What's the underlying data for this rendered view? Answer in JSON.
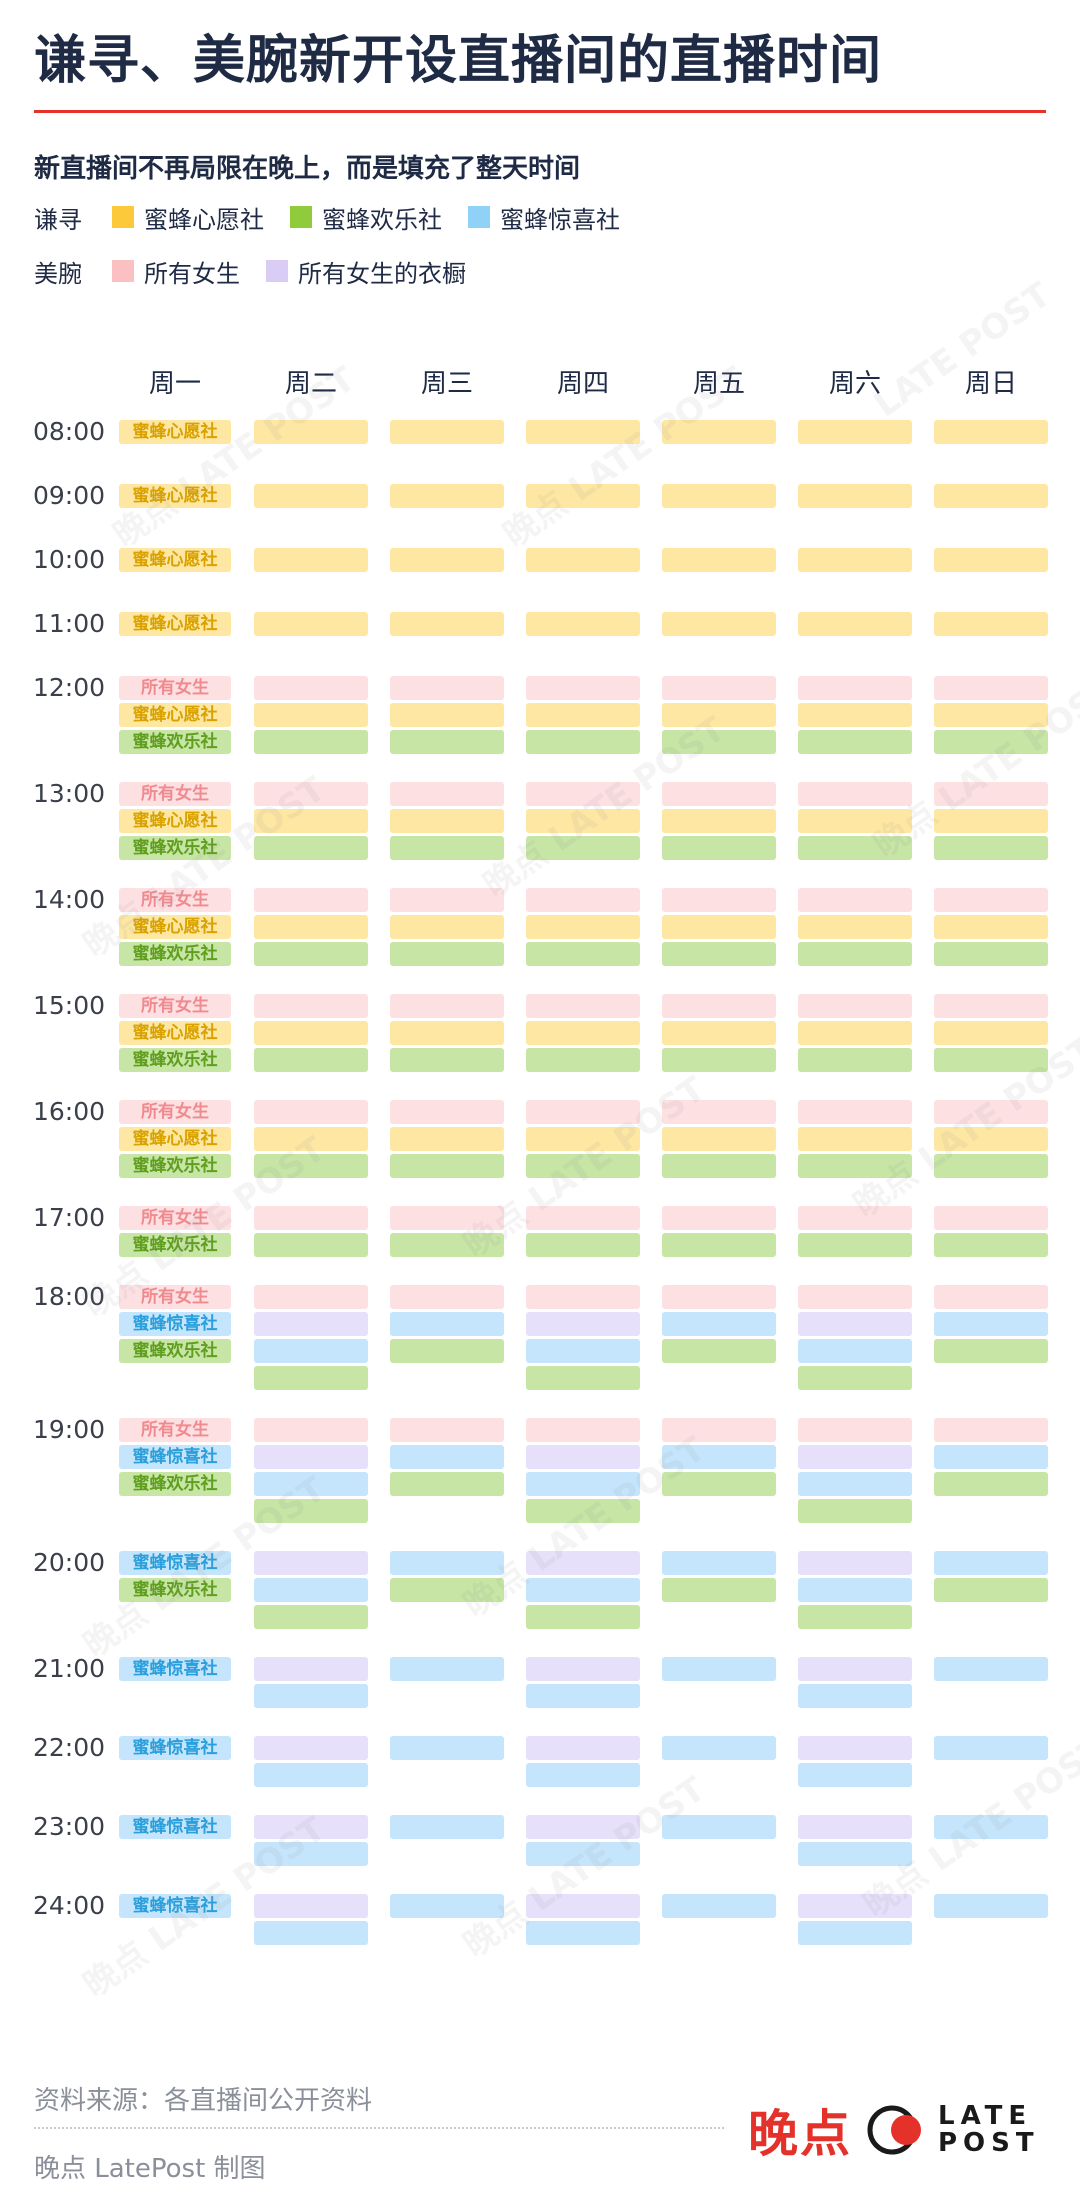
{
  "title": "谦寻、美腕新开设直播间的直播时间",
  "subtitle": "新直播间不再局限在晚上，而是填充了整天时间",
  "legend": {
    "rows": [
      {
        "host": "谦寻",
        "items": [
          {
            "label": "蜜蜂心愿社",
            "color": "#fcc93a"
          },
          {
            "label": "蜜蜂欢乐社",
            "color": "#8fcb3a"
          },
          {
            "label": "蜜蜂惊喜社",
            "color": "#8fd1f7"
          }
        ]
      },
      {
        "host": "美腕",
        "items": [
          {
            "label": "所有女生",
            "color": "#fbc0c2"
          },
          {
            "label": "所有女生的衣橱",
            "color": "#d9cdf6"
          }
        ]
      }
    ]
  },
  "colors": {
    "accent": "#e4312a",
    "text": "#1f2a44",
    "muted": "#8a8f99"
  },
  "chart_data": {
    "type": "table",
    "days": [
      "周一",
      "周二",
      "周三",
      "周四",
      "周五",
      "周六",
      "周日"
    ],
    "series_key": {
      "心愿": {
        "name": "蜜蜂心愿社",
        "fill": "#fde7a2",
        "text": "#d9a200"
      },
      "欢乐": {
        "name": "蜜蜂欢乐社",
        "fill": "#c7e5a4",
        "text": "#5f9e1e"
      },
      "惊喜": {
        "name": "蜜蜂惊喜社",
        "fill": "#c4e5fb",
        "text": "#2a9fdc"
      },
      "女生": {
        "name": "所有女生",
        "fill": "#fde0e2",
        "text": "#f08a8f"
      },
      "衣橱": {
        "name": "所有女生的衣橱",
        "fill": "#e6e0fa",
        "text": "#9a87d6"
      }
    },
    "hours": [
      {
        "time": "08:00",
        "monday": [
          "心愿"
        ],
        "grid": [
          [
            "心愿"
          ],
          [
            "心愿"
          ],
          [
            "心愿"
          ],
          [
            "心愿"
          ],
          [
            "心愿"
          ],
          [
            "心愿"
          ]
        ]
      },
      {
        "time": "09:00",
        "monday": [
          "心愿"
        ],
        "grid": [
          [
            "心愿"
          ],
          [
            "心愿"
          ],
          [
            "心愿"
          ],
          [
            "心愿"
          ],
          [
            "心愿"
          ],
          [
            "心愿"
          ]
        ]
      },
      {
        "time": "10:00",
        "monday": [
          "心愿"
        ],
        "grid": [
          [
            "心愿"
          ],
          [
            "心愿"
          ],
          [
            "心愿"
          ],
          [
            "心愿"
          ],
          [
            "心愿"
          ],
          [
            "心愿"
          ]
        ]
      },
      {
        "time": "11:00",
        "monday": [
          "心愿"
        ],
        "grid": [
          [
            "心愿"
          ],
          [
            "心愿"
          ],
          [
            "心愿"
          ],
          [
            "心愿"
          ],
          [
            "心愿"
          ],
          [
            "心愿"
          ]
        ]
      },
      {
        "time": "12:00",
        "monday": [
          "女生",
          "心愿",
          "欢乐"
        ],
        "grid": [
          [
            "女生",
            "心愿",
            "欢乐"
          ],
          [
            "女生",
            "心愿",
            "欢乐"
          ],
          [
            "女生",
            "心愿",
            "欢乐"
          ],
          [
            "女生",
            "心愿",
            "欢乐"
          ],
          [
            "女生",
            "心愿",
            "欢乐"
          ],
          [
            "女生",
            "心愿",
            "欢乐"
          ]
        ]
      },
      {
        "time": "13:00",
        "monday": [
          "女生",
          "心愿",
          "欢乐"
        ],
        "grid": [
          [
            "女生",
            "心愿",
            "欢乐"
          ],
          [
            "女生",
            "心愿",
            "欢乐"
          ],
          [
            "女生",
            "心愿",
            "欢乐"
          ],
          [
            "女生",
            "心愿",
            "欢乐"
          ],
          [
            "女生",
            "心愿",
            "欢乐"
          ],
          [
            "女生",
            "心愿",
            "欢乐"
          ]
        ]
      },
      {
        "time": "14:00",
        "monday": [
          "女生",
          "心愿",
          "欢乐"
        ],
        "grid": [
          [
            "女生",
            "心愿",
            "欢乐"
          ],
          [
            "女生",
            "心愿",
            "欢乐"
          ],
          [
            "女生",
            "心愿",
            "欢乐"
          ],
          [
            "女生",
            "心愿",
            "欢乐"
          ],
          [
            "女生",
            "心愿",
            "欢乐"
          ],
          [
            "女生",
            "心愿",
            "欢乐"
          ]
        ]
      },
      {
        "time": "15:00",
        "monday": [
          "女生",
          "心愿",
          "欢乐"
        ],
        "grid": [
          [
            "女生",
            "心愿",
            "欢乐"
          ],
          [
            "女生",
            "心愿",
            "欢乐"
          ],
          [
            "女生",
            "心愿",
            "欢乐"
          ],
          [
            "女生",
            "心愿",
            "欢乐"
          ],
          [
            "女生",
            "心愿",
            "欢乐"
          ],
          [
            "女生",
            "心愿",
            "欢乐"
          ]
        ]
      },
      {
        "time": "16:00",
        "monday": [
          "女生",
          "心愿",
          "欢乐"
        ],
        "grid": [
          [
            "女生",
            "心愿",
            "欢乐"
          ],
          [
            "女生",
            "心愿",
            "欢乐"
          ],
          [
            "女生",
            "心愿",
            "欢乐"
          ],
          [
            "女生",
            "心愿",
            "欢乐"
          ],
          [
            "女生",
            "心愿",
            "欢乐"
          ],
          [
            "女生",
            "心愿",
            "欢乐"
          ]
        ]
      },
      {
        "time": "17:00",
        "monday": [
          "女生",
          "欢乐"
        ],
        "grid": [
          [
            "女生",
            "欢乐"
          ],
          [
            "女生",
            "欢乐"
          ],
          [
            "女生",
            "欢乐"
          ],
          [
            "女生",
            "欢乐"
          ],
          [
            "女生",
            "欢乐"
          ],
          [
            "女生",
            "欢乐"
          ]
        ]
      },
      {
        "time": "18:00",
        "monday": [
          "女生",
          "惊喜",
          "欢乐"
        ],
        "grid": [
          [
            "女生",
            "衣橱",
            "惊喜",
            "欢乐"
          ],
          [
            "女生",
            "惊喜",
            "欢乐"
          ],
          [
            "女生",
            "衣橱",
            "惊喜",
            "欢乐"
          ],
          [
            "女生",
            "惊喜",
            "欢乐"
          ],
          [
            "女生",
            "衣橱",
            "惊喜",
            "欢乐"
          ],
          [
            "女生",
            "惊喜",
            "欢乐"
          ]
        ]
      },
      {
        "time": "19:00",
        "monday": [
          "女生",
          "惊喜",
          "欢乐"
        ],
        "grid": [
          [
            "女生",
            "衣橱",
            "惊喜",
            "欢乐"
          ],
          [
            "女生",
            "惊喜",
            "欢乐"
          ],
          [
            "女生",
            "衣橱",
            "惊喜",
            "欢乐"
          ],
          [
            "女生",
            "惊喜",
            "欢乐"
          ],
          [
            "女生",
            "衣橱",
            "惊喜",
            "欢乐"
          ],
          [
            "女生",
            "惊喜",
            "欢乐"
          ]
        ]
      },
      {
        "time": "20:00",
        "monday": [
          "惊喜",
          "欢乐"
        ],
        "grid": [
          [
            "衣橱",
            "惊喜",
            "欢乐"
          ],
          [
            "惊喜",
            "欢乐"
          ],
          [
            "衣橱",
            "惊喜",
            "欢乐"
          ],
          [
            "惊喜",
            "欢乐"
          ],
          [
            "衣橱",
            "惊喜",
            "欢乐"
          ],
          [
            "惊喜",
            "欢乐"
          ]
        ]
      },
      {
        "time": "21:00",
        "monday": [
          "惊喜"
        ],
        "grid": [
          [
            "衣橱",
            "惊喜"
          ],
          [
            "惊喜"
          ],
          [
            "衣橱",
            "惊喜"
          ],
          [
            "惊喜"
          ],
          [
            "衣橱",
            "惊喜"
          ],
          [
            "惊喜"
          ]
        ]
      },
      {
        "time": "22:00",
        "monday": [
          "惊喜"
        ],
        "grid": [
          [
            "衣橱",
            "惊喜"
          ],
          [
            "惊喜"
          ],
          [
            "衣橱",
            "惊喜"
          ],
          [
            "惊喜"
          ],
          [
            "衣橱",
            "惊喜"
          ],
          [
            "惊喜"
          ]
        ]
      },
      {
        "time": "23:00",
        "monday": [
          "惊喜"
        ],
        "grid": [
          [
            "衣橱",
            "惊喜"
          ],
          [
            "惊喜"
          ],
          [
            "衣橱",
            "惊喜"
          ],
          [
            "惊喜"
          ],
          [
            "衣橱",
            "惊喜"
          ],
          [
            "惊喜"
          ]
        ]
      },
      {
        "time": "24:00",
        "monday": [
          "惊喜"
        ],
        "grid": [
          [
            "衣橱",
            "惊喜"
          ],
          [
            "惊喜"
          ],
          [
            "衣橱",
            "惊喜"
          ],
          [
            "惊喜"
          ],
          [
            "衣橱",
            "惊喜"
          ],
          [
            "惊喜"
          ]
        ]
      }
    ]
  },
  "footer": {
    "source": "资料来源：各直播间公开资料",
    "credit": "晚点 LatePost 制图"
  },
  "brand": {
    "name_cn": "晚点",
    "name_en_top": "LATE",
    "name_en_bottom": "POST"
  }
}
